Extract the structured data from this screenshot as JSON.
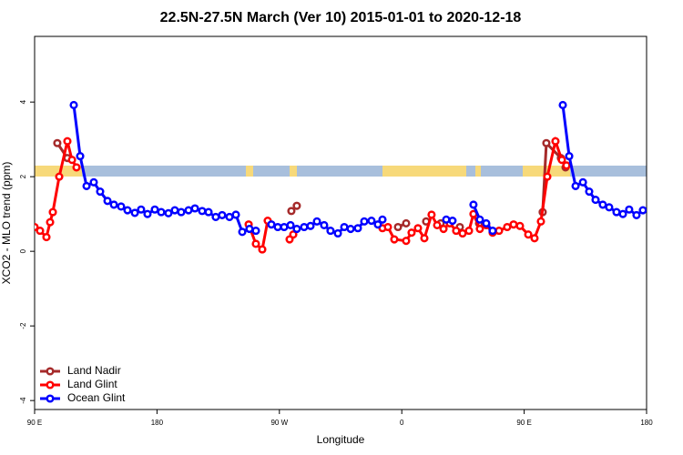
{
  "chart_data": {
    "type": "line",
    "title": "22.5N-27.5N March (Ver 10)   2015-01-01 to 2020-12-18",
    "xlabel": "Longitude",
    "ylabel": "XCO2 - MLO trend (ppm)",
    "xlim": [
      90,
      540
    ],
    "ylim": [
      -4.24,
      5.76
    ],
    "xticks": [
      {
        "value": 90,
        "label": "90 E"
      },
      {
        "value": 180,
        "label": "180"
      },
      {
        "value": 270,
        "label": "90 W"
      },
      {
        "value": 360,
        "label": "0"
      },
      {
        "value": 450,
        "label": "90 E"
      },
      {
        "value": 540,
        "label": "180"
      }
    ],
    "yticks": [
      -4,
      -2,
      0,
      2,
      4
    ],
    "legend": "bottom-left",
    "series": [
      {
        "name": "Land Nadir",
        "color": "#a52a2a",
        "x": [
          106.7,
          114.1,
          null,
          278.8,
          282.8,
          null,
          357.2,
          363.2,
          null,
          377.9,
          null,
          388.6,
          null,
          402.7,
          null,
          416.8,
          null,
          463.6,
          466.3,
          477.0,
          480.4
        ],
        "values": [
          2.9,
          2.5,
          null,
          1.08,
          1.22,
          null,
          0.65,
          0.75,
          null,
          0.8,
          null,
          0.75,
          null,
          0.65,
          null,
          0.75,
          null,
          1.05,
          2.9,
          2.5,
          2.25
        ]
      },
      {
        "name": "Land Glint",
        "color": "#ff0000",
        "x": [
          90,
          94,
          98.7,
          101.4,
          103.4,
          108.1,
          114.1,
          117.5,
          120.8,
          null,
          247.4,
          252.7,
          257.4,
          261.4,
          null,
          277.5,
          280.2,
          null,
          345.8,
          349.8,
          354.5,
          363.2,
          367.2,
          371.9,
          376.6,
          381.9,
          386.0,
          390.7,
          395.3,
          400.0,
          404.7,
          409.4,
          412.7,
          417.4,
          422.1,
          426.8,
          431.5,
          437.5,
          442.2,
          446.9,
          453.0,
          457.6,
          462.3,
          467.0,
          473.0,
          477.7,
          481.1
        ],
        "values": [
          0.65,
          0.55,
          0.38,
          0.78,
          1.05,
          2.0,
          2.95,
          2.45,
          2.25,
          null,
          0.72,
          0.2,
          0.05,
          0.82,
          null,
          0.32,
          0.45,
          null,
          0.62,
          0.65,
          0.32,
          0.28,
          0.5,
          0.62,
          0.35,
          0.98,
          0.7,
          0.6,
          0.75,
          0.55,
          0.48,
          0.55,
          1.0,
          0.6,
          0.7,
          0.5,
          0.55,
          0.65,
          0.72,
          0.68,
          0.45,
          0.35,
          0.8,
          2.0,
          2.95,
          2.45,
          2.3
        ]
      },
      {
        "name": "Ocean Glint",
        "color": "#0000ff",
        "x": [
          118.8,
          123.5,
          128.2,
          133.5,
          138.2,
          143.6,
          148.3,
          153.6,
          158.3,
          163.7,
          168.3,
          173.0,
          178.4,
          183.1,
          188.4,
          193.1,
          197.8,
          203.2,
          207.9,
          213.2,
          217.9,
          223.2,
          227.9,
          233.3,
          238.0,
          242.7,
          248.0,
          252.7,
          null,
          264.1,
          268.8,
          273.5,
          278.2,
          282.8,
          288.2,
          292.9,
          297.6,
          302.9,
          307.6,
          313.0,
          317.7,
          322.4,
          327.7,
          332.4,
          337.7,
          342.4,
          345.8,
          null,
          392.7,
          397.3,
          null,
          412.7,
          417.4,
          422.1,
          426.8,
          null,
          478.4,
          483.1,
          487.8,
          493.2,
          497.8,
          502.5,
          507.8,
          512.5,
          517.9,
          522.6,
          527.2,
          532.6,
          537.3
        ],
        "values": [
          3.92,
          2.55,
          1.75,
          1.85,
          1.6,
          1.35,
          1.25,
          1.2,
          1.1,
          1.03,
          1.12,
          1.0,
          1.12,
          1.05,
          1.02,
          1.1,
          1.05,
          1.1,
          1.15,
          1.08,
          1.05,
          0.92,
          0.97,
          0.92,
          0.98,
          0.52,
          0.6,
          0.55,
          null,
          0.72,
          0.65,
          0.65,
          0.7,
          0.6,
          0.65,
          0.68,
          0.8,
          0.7,
          0.55,
          0.48,
          0.65,
          0.6,
          0.62,
          0.8,
          0.82,
          0.72,
          0.85,
          null,
          0.85,
          0.82,
          null,
          1.25,
          0.85,
          0.75,
          0.55,
          null,
          3.92,
          2.55,
          1.75,
          1.85,
          1.6,
          1.38,
          1.25,
          1.18,
          1.05,
          1.0,
          1.12,
          0.97,
          1.1
        ]
      }
    ]
  }
}
